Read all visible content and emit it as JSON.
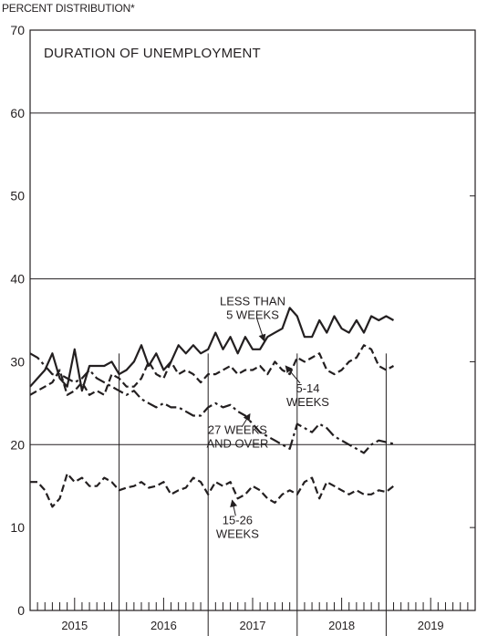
{
  "chart_data": {
    "type": "line",
    "title": "DURATION OF UNEMPLOYMENT",
    "ylabel": "PERCENT DISTRIBUTION*",
    "xlabel": "",
    "ylim": [
      0,
      70
    ],
    "yticks": [
      "0",
      "10",
      "20",
      "30",
      "40",
      "50",
      "60",
      "70"
    ],
    "xlim": [
      2015.0,
      2020.0
    ],
    "x_tick_labels": [
      "2015",
      "2016",
      "2017",
      "2018",
      "2019"
    ],
    "grid": "horizontal at 20, 40, 60",
    "legend": "none (inline labels)",
    "x": [
      2015.0,
      2015.083,
      2015.167,
      2015.25,
      2015.333,
      2015.417,
      2015.5,
      2015.583,
      2015.667,
      2015.75,
      2015.833,
      2015.917,
      2016.0,
      2016.083,
      2016.167,
      2016.25,
      2016.333,
      2016.417,
      2016.5,
      2016.583,
      2016.667,
      2016.75,
      2016.833,
      2016.917,
      2017.0,
      2017.083,
      2017.167,
      2017.25,
      2017.333,
      2017.417,
      2017.5,
      2017.583,
      2017.667,
      2017.75,
      2017.833,
      2017.917,
      2018.0,
      2018.083,
      2018.167,
      2018.25,
      2018.333,
      2018.417,
      2018.5,
      2018.583,
      2018.667,
      2018.75,
      2018.833,
      2018.917,
      2019.0,
      2019.083
    ],
    "series": [
      {
        "name": "LESS THAN 5 WEEKS",
        "dash": "solid",
        "values": [
          27.0,
          28.0,
          29.0,
          31.0,
          28.0,
          27.0,
          31.5,
          26.5,
          29.5,
          29.5,
          29.5,
          30.0,
          28.5,
          29.0,
          30.0,
          32.0,
          29.5,
          31.0,
          29.0,
          30.0,
          32.0,
          31.0,
          32.0,
          31.0,
          31.5,
          33.5,
          31.5,
          33.0,
          31.0,
          33.0,
          31.5,
          31.5,
          33.0,
          33.5,
          34.0,
          36.5,
          35.5,
          33.0,
          33.0,
          35.0,
          33.5,
          35.5,
          34.0,
          33.5,
          35.0,
          33.5,
          35.5,
          35.0,
          35.5,
          35.0
        ]
      },
      {
        "name": "5-14 WEEKS",
        "dash": "dashed",
        "values": [
          26.0,
          26.5,
          27.0,
          27.5,
          29.0,
          26.0,
          26.5,
          27.5,
          26.0,
          26.5,
          26.0,
          28.5,
          28.0,
          27.0,
          27.0,
          28.0,
          30.0,
          28.5,
          28.0,
          30.0,
          28.5,
          29.0,
          28.5,
          27.5,
          28.5,
          28.5,
          29.0,
          29.5,
          28.5,
          29.0,
          29.0,
          29.5,
          28.5,
          30.0,
          29.0,
          28.5,
          30.5,
          30.0,
          30.5,
          31.0,
          29.0,
          28.5,
          29.0,
          30.0,
          30.5,
          32.0,
          31.5,
          29.5,
          29.0,
          29.5
        ]
      },
      {
        "name": "27 WEEKS AND OVER",
        "dash": "dashdot",
        "values": [
          31.0,
          30.5,
          29.5,
          28.5,
          28.5,
          28.0,
          27.5,
          28.0,
          29.0,
          28.0,
          27.5,
          27.0,
          26.5,
          26.0,
          26.5,
          25.5,
          25.0,
          24.5,
          25.0,
          24.5,
          24.5,
          24.0,
          23.5,
          23.5,
          24.5,
          25.0,
          24.5,
          24.8,
          24.0,
          23.5,
          22.5,
          21.5,
          21.0,
          20.5,
          20.0,
          19.5,
          22.5,
          22.0,
          21.5,
          22.5,
          22.0,
          21.0,
          20.5,
          20.0,
          19.5,
          19.0,
          20.0,
          20.5,
          20.3,
          20.1
        ]
      },
      {
        "name": "15-26 WEEKS",
        "dash": "dashed",
        "values": [
          15.5,
          15.5,
          14.5,
          12.5,
          13.5,
          16.5,
          15.5,
          16.0,
          15.0,
          15.0,
          16.0,
          15.5,
          14.5,
          14.8,
          15.0,
          15.5,
          14.8,
          15.0,
          15.5,
          14.0,
          14.5,
          14.8,
          16.0,
          15.5,
          14.0,
          15.5,
          15.0,
          15.5,
          13.5,
          14.0,
          15.0,
          14.5,
          13.5,
          13.0,
          14.0,
          14.5,
          14.0,
          15.5,
          16.0,
          13.5,
          15.5,
          15.0,
          14.5,
          14.0,
          14.5,
          14.0,
          14.0,
          14.5,
          14.3,
          15.0
        ]
      }
    ],
    "annotations": [
      {
        "lines": [
          "LESS THAN",
          "5 WEEKS"
        ],
        "series": "LESS THAN 5 WEEKS",
        "x": 2017.5,
        "y": 36.8,
        "point_x": 2017.63,
        "point_y": 32.5
      },
      {
        "lines": [
          "5-14",
          "WEEKS"
        ],
        "series": "5-14 WEEKS",
        "x": 2018.12,
        "y": 26.3,
        "point_x": 2017.87,
        "point_y": 29.5
      },
      {
        "lines": [
          "27 WEEKS",
          "AND OVER"
        ],
        "series": "27 WEEKS AND OVER",
        "x": 2017.33,
        "y": 21.3,
        "point_x": 2017.47,
        "point_y": 23.7
      },
      {
        "lines": [
          "15-26",
          "WEEKS"
        ],
        "series": "15-26 WEEKS",
        "x": 2017.33,
        "y": 10.4,
        "point_x": 2017.27,
        "point_y": 13.3
      }
    ]
  }
}
